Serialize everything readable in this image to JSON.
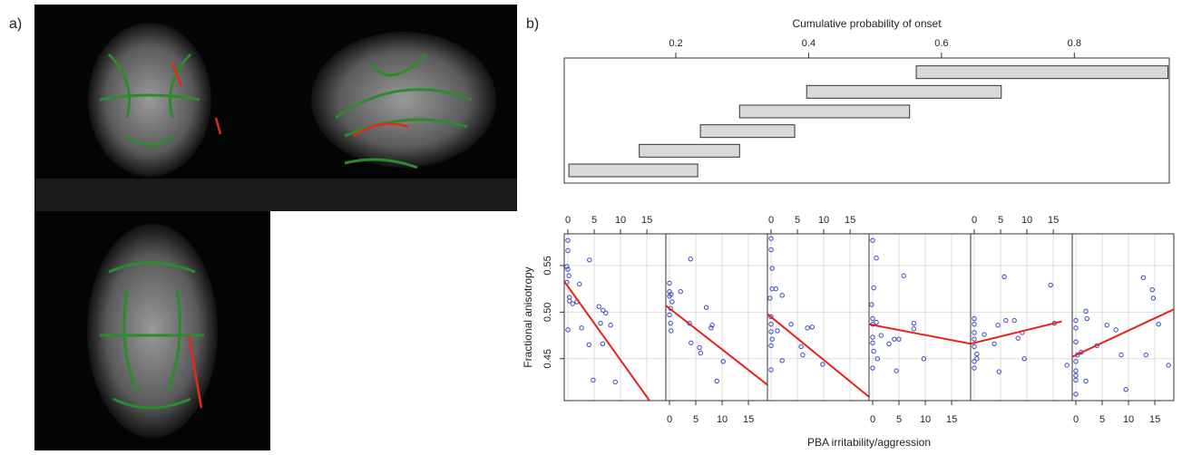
{
  "panel_labels": {
    "a": "a)",
    "b": "b)"
  },
  "chart_data": [
    {
      "type": "interval",
      "title": "Cumulative probability of onset",
      "xlim": [
        0.032,
        0.943
      ],
      "xticks": [
        0.2,
        0.4,
        0.6,
        0.8
      ],
      "color": "#d9d9d9",
      "intervals": [
        [
          0.039,
          0.233
        ],
        [
          0.145,
          0.296
        ],
        [
          0.237,
          0.379
        ],
        [
          0.296,
          0.552
        ],
        [
          0.397,
          0.69
        ],
        [
          0.562,
          0.941
        ]
      ]
    },
    {
      "type": "coplot",
      "ylabel": "Fractional anisotropy",
      "xlabel": "PBA irritability/aggression",
      "xlim": [
        -0.69,
        18.6
      ],
      "xticks": [
        0,
        5,
        10,
        15
      ],
      "ylim": [
        0.405,
        0.584
      ],
      "yticks": [
        0.45,
        {
          "value": 0.5,
          "label": "0.50"
        },
        0.55
      ],
      "grid": true,
      "point_color": "#3a48c0",
      "line_color": "#e8221a",
      "panels": [
        {
          "x": [
            0,
            0,
            -0.2,
            0,
            0.2,
            -0.2,
            0.3,
            0.3,
            0.9,
            1.7,
            2.2,
            4.1,
            2.6,
            4,
            5.9,
            6.2,
            6.6,
            6.7,
            7.2,
            4.8,
            9,
            8.1,
            0
          ],
          "y": [
            0.577,
            0.566,
            0.549,
            0.546,
            0.539,
            0.532,
            0.516,
            0.512,
            0.509,
            0.511,
            0.53,
            0.556,
            0.483,
            0.465,
            0.506,
            0.488,
            0.466,
            0.502,
            0.499,
            0.427,
            0.425,
            0.486,
            0.481
          ],
          "fit_x": [
            -0.69,
            15.5
          ],
          "fit_y": [
            0.533,
            0.405
          ]
        },
        {
          "x": [
            0,
            0,
            0,
            0.3,
            0.5,
            0.2,
            0,
            0.2,
            0.3,
            2.1,
            4,
            3.8,
            4.1,
            5.7,
            5.9,
            7.9,
            8.1,
            7,
            9,
            10.2
          ],
          "y": [
            0.531,
            0.522,
            0.517,
            0.519,
            0.511,
            0.504,
            0.497,
            0.488,
            0.48,
            0.522,
            0.557,
            0.488,
            0.467,
            0.462,
            0.456,
            0.483,
            0.486,
            0.505,
            0.426,
            0.447
          ],
          "fit_x": [
            -0.69,
            18.6
          ],
          "fit_y": [
            0.507,
            0.422
          ]
        },
        {
          "x": [
            0,
            0,
            0.2,
            0.2,
            -0.2,
            0,
            0,
            0,
            0.2,
            0,
            0,
            0.9,
            2.1,
            1.2,
            2.1,
            3.8,
            5.7,
            6,
            6.9,
            7.8,
            9.8
          ],
          "y": [
            0.579,
            0.567,
            0.547,
            0.525,
            0.515,
            0.495,
            0.487,
            0.479,
            0.471,
            0.464,
            0.438,
            0.525,
            0.518,
            0.48,
            0.448,
            0.487,
            0.463,
            0.454,
            0.483,
            0.484,
            0.444
          ],
          "fit_x": [
            -0.69,
            18.6
          ],
          "fit_y": [
            0.498,
            0.409
          ]
        },
        {
          "x": [
            0,
            0.2,
            -0.2,
            0,
            0,
            0,
            0,
            0.2,
            0,
            0.7,
            0.7,
            0.9,
            1.6,
            3.1,
            4.1,
            4.5,
            5,
            5.9,
            7.8,
            7.8,
            9.7
          ],
          "y": [
            0.577,
            0.526,
            0.508,
            0.493,
            0.487,
            0.473,
            0.467,
            0.458,
            0.44,
            0.558,
            0.489,
            0.45,
            0.475,
            0.466,
            0.471,
            0.437,
            0.471,
            0.539,
            0.488,
            0.482,
            0.45
          ],
          "fit_x": [
            -0.69,
            18.6
          ],
          "fit_y": [
            0.487,
            0.466
          ]
        },
        {
          "x": [
            0,
            0,
            0,
            0,
            0,
            0,
            0,
            0.5,
            0.5,
            1.9,
            3.8,
            4.5,
            4.7,
            5.7,
            6,
            7.6,
            8.3,
            9.1,
            9.5,
            14.5,
            15.2,
            17.6
          ],
          "y": [
            0.493,
            0.487,
            0.478,
            0.471,
            0.463,
            0.447,
            0.44,
            0.455,
            0.45,
            0.476,
            0.466,
            0.486,
            0.436,
            0.538,
            0.491,
            0.491,
            0.472,
            0.478,
            0.45,
            0.529,
            0.488,
            0.443
          ],
          "fit_x": [
            -0.69,
            16.6
          ],
          "fit_y": [
            0.466,
            0.49
          ]
        },
        {
          "x": [
            0,
            0,
            0,
            0,
            0,
            0,
            0,
            0,
            0.3,
            1,
            1.9,
            2.1,
            4,
            1.9,
            5.9,
            7.6,
            8.6,
            9.5,
            12.8,
            14.5,
            14.7,
            15.7,
            17.6,
            13.3
          ],
          "y": [
            0.491,
            0.483,
            0.468,
            0.447,
            0.437,
            0.432,
            0.427,
            0.412,
            0.454,
            0.457,
            0.501,
            0.493,
            0.464,
            0.426,
            0.486,
            0.481,
            0.454,
            0.417,
            0.537,
            0.524,
            0.515,
            0.487,
            0.443,
            0.454
          ],
          "fit_x": [
            -0.69,
            18.6
          ],
          "fit_y": [
            0.452,
            0.503
          ]
        }
      ]
    }
  ]
}
